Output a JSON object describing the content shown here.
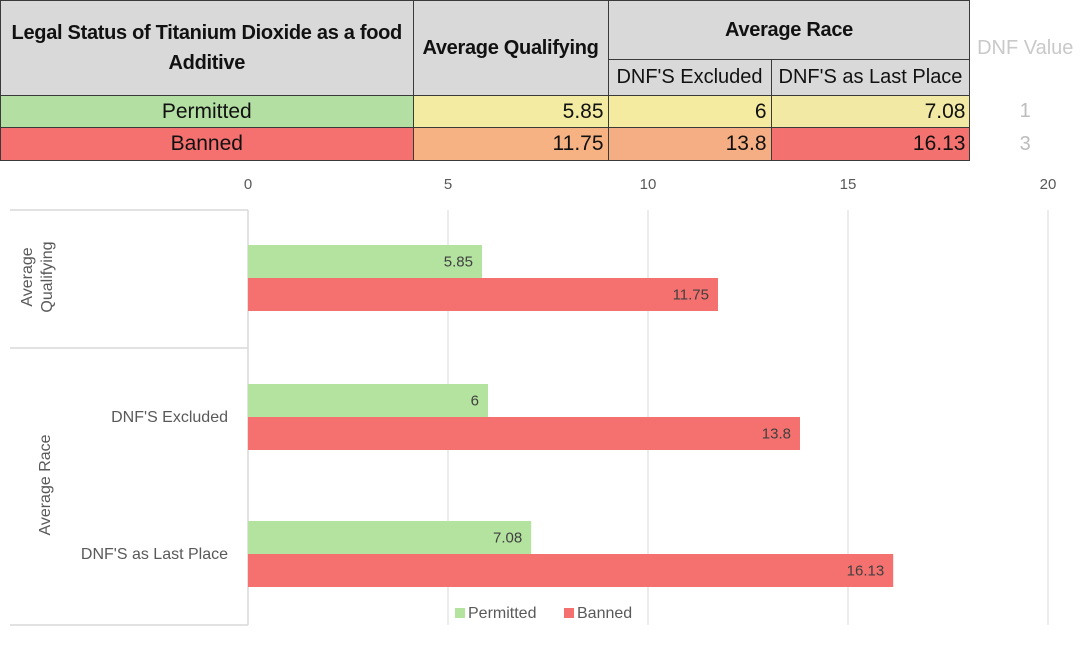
{
  "table": {
    "header_legal": "Legal Status of  Titanium Dioxide as a food Additive",
    "header_avg_qual": "Average Qualifying",
    "header_avg_race": "Average Race",
    "sub_dnf_excluded": "DNF'S Excluded",
    "sub_dnf_last": "DNF'S as Last Place",
    "header_dnf_value": "DNF Value",
    "rows": [
      {
        "status": "Permitted",
        "avg_qualifying": "5.85",
        "dnf_excluded": "6",
        "dnf_last": "7.08",
        "dnf_value": "1"
      },
      {
        "status": "Banned",
        "avg_qualifying": "11.75",
        "dnf_excluded": "13.8",
        "dnf_last": "16.13",
        "dnf_value": "3"
      }
    ],
    "colors": {
      "permitted_label": "#b4dfa3",
      "banned_label": "#f4716f",
      "permitted_qual": "#f3eba2",
      "permitted_excl": "#f4eba1",
      "permitted_last": "#f2eaa4",
      "banned_qual": "#f6b283",
      "banned_excl": "#f5ae83",
      "banned_last": "#f3716f"
    }
  },
  "chart_data": {
    "type": "bar",
    "orientation": "horizontal",
    "x_ticks": [
      0,
      5,
      10,
      15,
      20
    ],
    "xlim": [
      0,
      20
    ],
    "grid": true,
    "legend_position": "bottom",
    "groups": [
      {
        "group": "Average Qualifying",
        "categories": [
          ""
        ]
      },
      {
        "group": "Average Race",
        "categories": [
          "DNF'S Excluded",
          "DNF'S as Last Place"
        ]
      }
    ],
    "series": [
      {
        "name": "Permitted",
        "color": "#b4e3a0",
        "values": [
          5.85,
          6,
          7.08
        ]
      },
      {
        "name": "Banned",
        "color": "#f4716f",
        "values": [
          11.75,
          13.8,
          16.13
        ]
      }
    ]
  }
}
